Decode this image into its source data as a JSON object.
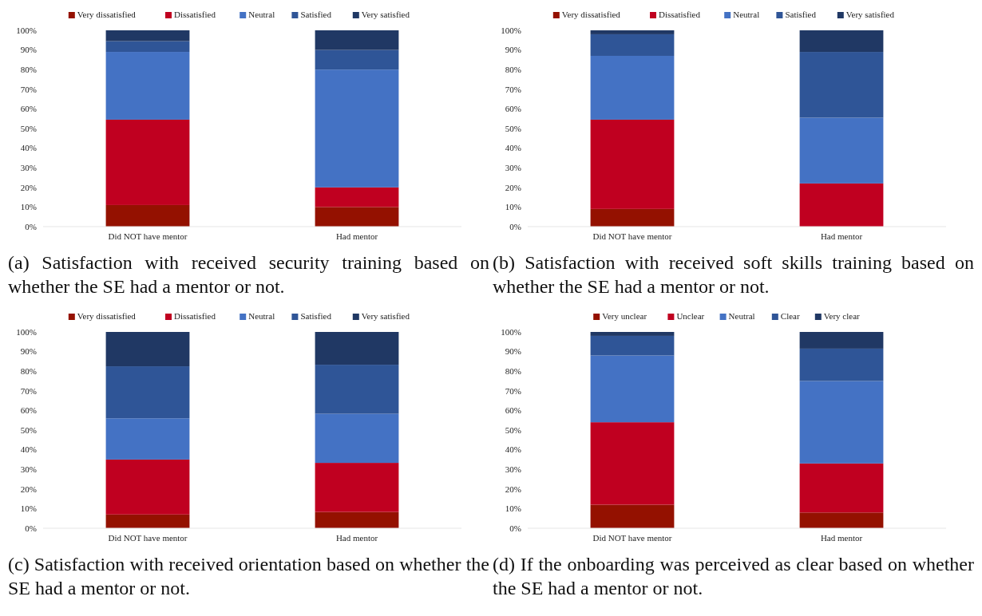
{
  "chart_data": [
    {
      "type": "bar",
      "stacked": true,
      "title": "(a) Satisfaction with received security training based on whether the SE had a mentor or not.",
      "categories": [
        "Did NOT have mentor",
        "Had mentor"
      ],
      "legend": "top",
      "ylim": [
        0,
        100
      ],
      "yticks": [
        {
          "value": 0,
          "label": "0%"
        },
        {
          "value": 10,
          "label": "10%"
        },
        {
          "value": 20,
          "label": "20%"
        },
        {
          "value": 30,
          "label": "30%"
        },
        {
          "value": 40,
          "label": "40%"
        },
        {
          "value": 50,
          "label": "50%"
        },
        {
          "value": 60,
          "label": "60%"
        },
        {
          "value": 70,
          "label": "70%"
        },
        {
          "value": 80,
          "label": "80%"
        },
        {
          "value": 90,
          "label": "90%"
        },
        {
          "value": 100,
          "label": "100%"
        }
      ],
      "series": [
        {
          "name": "Very dissatisfied",
          "color": "#941100",
          "values": [
            11,
            10
          ]
        },
        {
          "name": "Dissatisfied",
          "color": "#c00020",
          "values": [
            43.5,
            10
          ]
        },
        {
          "name": "Neutral",
          "color": "#4472c4",
          "values": [
            34.5,
            60
          ]
        },
        {
          "name": "Satisfied",
          "color": "#2f5597",
          "values": [
            5.5,
            10
          ]
        },
        {
          "name": "Very satisfied",
          "color": "#203864",
          "values": [
            5.5,
            10
          ]
        }
      ]
    },
    {
      "type": "bar",
      "stacked": true,
      "title": "(b) Satisfaction with received soft skills training based on whether the SE had a mentor or not.",
      "categories": [
        "Did NOT have mentor",
        "Had mentor"
      ],
      "legend": "top",
      "ylim": [
        0,
        100
      ],
      "yticks": [
        {
          "value": 0,
          "label": "0%"
        },
        {
          "value": 10,
          "label": "10%"
        },
        {
          "value": 20,
          "label": "20%"
        },
        {
          "value": 30,
          "label": "30%"
        },
        {
          "value": 40,
          "label": "40%"
        },
        {
          "value": 50,
          "label": "50%"
        },
        {
          "value": 60,
          "label": "60%"
        },
        {
          "value": 70,
          "label": "70%"
        },
        {
          "value": 80,
          "label": "80%"
        },
        {
          "value": 90,
          "label": "90%"
        },
        {
          "value": 100,
          "label": "100%"
        }
      ],
      "series": [
        {
          "name": "Very dissatisfied",
          "color": "#941100",
          "values": [
            9,
            0
          ]
        },
        {
          "name": "Dissatisfied",
          "color": "#c00020",
          "values": [
            45.5,
            22
          ]
        },
        {
          "name": "Neutral",
          "color": "#4472c4",
          "values": [
            32.5,
            33.5
          ]
        },
        {
          "name": "Satisfied",
          "color": "#2f5597",
          "values": [
            11,
            33.5
          ]
        },
        {
          "name": "Very satisfied",
          "color": "#203864",
          "values": [
            2,
            11
          ]
        }
      ]
    },
    {
      "type": "bar",
      "stacked": true,
      "title": "(c) Satisfaction with received orientation based on whether the SE had a mentor or not.",
      "categories": [
        "Did NOT have mentor",
        "Had mentor"
      ],
      "legend": "top",
      "ylim": [
        0,
        100
      ],
      "yticks": [
        {
          "value": 0,
          "label": "0%"
        },
        {
          "value": 10,
          "label": "10%"
        },
        {
          "value": 20,
          "label": "20%"
        },
        {
          "value": 30,
          "label": "30%"
        },
        {
          "value": 40,
          "label": "40%"
        },
        {
          "value": 50,
          "label": "50%"
        },
        {
          "value": 60,
          "label": "60%"
        },
        {
          "value": 70,
          "label": "70%"
        },
        {
          "value": 80,
          "label": "80%"
        },
        {
          "value": 90,
          "label": "90%"
        },
        {
          "value": 100,
          "label": "100%"
        }
      ],
      "series": [
        {
          "name": "Very dissatisfied",
          "color": "#941100",
          "values": [
            7,
            8.3
          ]
        },
        {
          "name": "Dissatisfied",
          "color": "#c00020",
          "values": [
            28,
            25
          ]
        },
        {
          "name": "Neutral",
          "color": "#4472c4",
          "values": [
            21,
            25
          ]
        },
        {
          "name": "Satisfied",
          "color": "#2f5597",
          "values": [
            26.5,
            25
          ]
        },
        {
          "name": "Very satisfied",
          "color": "#203864",
          "values": [
            17.5,
            16.7
          ]
        }
      ]
    },
    {
      "type": "bar",
      "stacked": true,
      "title": "(d) If the onboarding was perceived as clear based on whether the SE had a mentor or not.",
      "categories": [
        "Did NOT have mentor",
        "Had mentor"
      ],
      "legend": "top",
      "ylim": [
        0,
        100
      ],
      "yticks": [
        {
          "value": 0,
          "label": "0%"
        },
        {
          "value": 10,
          "label": "10%"
        },
        {
          "value": 20,
          "label": "20%"
        },
        {
          "value": 30,
          "label": "30%"
        },
        {
          "value": 40,
          "label": "40%"
        },
        {
          "value": 50,
          "label": "50%"
        },
        {
          "value": 60,
          "label": "60%"
        },
        {
          "value": 70,
          "label": "70%"
        },
        {
          "value": 80,
          "label": "80%"
        },
        {
          "value": 90,
          "label": "90%"
        },
        {
          "value": 100,
          "label": "100%"
        }
      ],
      "series": [
        {
          "name": "Very unclear",
          "color": "#941100",
          "values": [
            12,
            8
          ]
        },
        {
          "name": "Unclear",
          "color": "#c00020",
          "values": [
            42,
            25
          ]
        },
        {
          "name": "Neutral",
          "color": "#4472c4",
          "values": [
            34,
            42
          ]
        },
        {
          "name": "Clear",
          "color": "#2f5597",
          "values": [
            10,
            16.5
          ]
        },
        {
          "name": "Very clear",
          "color": "#203864",
          "values": [
            2,
            8.5
          ]
        }
      ]
    }
  ]
}
